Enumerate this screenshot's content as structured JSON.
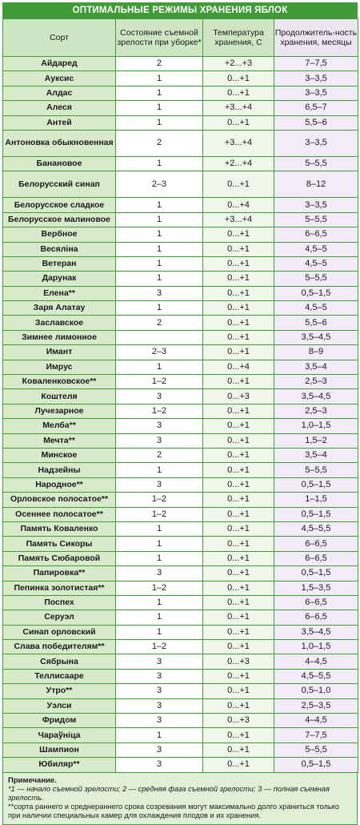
{
  "title": "ОПТИМАЛЬНЫЕ РЕЖИМЫ ХРАНЕНИЯ ЯБЛОК",
  "headers": {
    "sort": "Сорт",
    "state": "Состояние съемной зрелости при уборке*",
    "temp": "Температура хранения, С",
    "duration": "Продолжитель-ность хранения, месяцы"
  },
  "rows": [
    {
      "sort": "Айдаред",
      "state": "2",
      "temp": "+2...+3",
      "duration": "7–7,5"
    },
    {
      "sort": "Ауксис",
      "state": "1",
      "temp": "0...+1",
      "duration": "3–3,5"
    },
    {
      "sort": "Алдас",
      "state": "1",
      "temp": "0...+1",
      "duration": "3–3,5"
    },
    {
      "sort": "Алеся",
      "state": "1",
      "temp": "+3...+4",
      "duration": "6,5–7"
    },
    {
      "sort": "Антей",
      "state": "1",
      "temp": "0...+1",
      "duration": "5,5–6"
    },
    {
      "sort": "Антоновка обыкновенная",
      "state": "2",
      "temp": "+3...+4",
      "duration": "3–3,5",
      "tall": true
    },
    {
      "sort": "Банановое",
      "state": "1",
      "temp": "+2...+4",
      "duration": "5–5,5"
    },
    {
      "sort": "Белорусский синап",
      "state": "2–3",
      "temp": "0...+1",
      "duration": "8–12",
      "tall": true
    },
    {
      "sort": "Белорусское сладкое",
      "state": "1",
      "temp": "0...+4",
      "duration": "3–3,5"
    },
    {
      "sort": "Белорусское малиновое",
      "state": "1",
      "temp": "+3...+4",
      "duration": "5–5,5"
    },
    {
      "sort": "Вербное",
      "state": "1",
      "temp": "0...+1",
      "duration": "6–6,5"
    },
    {
      "sort": "Весялiна",
      "state": "1",
      "temp": "0...+1",
      "duration": "4,5–5"
    },
    {
      "sort": "Ветеран",
      "state": "1",
      "temp": "0...+1",
      "duration": "4,5–5"
    },
    {
      "sort": "Дарунак",
      "state": "1",
      "temp": "0...+1",
      "duration": "5–5,5"
    },
    {
      "sort": "Елена**",
      "state": "3",
      "temp": "0...+1",
      "duration": "0,5–1,5"
    },
    {
      "sort": "Заря Алатау",
      "state": "1",
      "temp": "0...+1",
      "duration": "4,5–5"
    },
    {
      "sort": "Заславское",
      "state": "2",
      "temp": "0...+1",
      "duration": "5,5–6"
    },
    {
      "sort": "Зимнее лимонное",
      "state": "",
      "temp": "0...+1",
      "duration": "3,5–4,5"
    },
    {
      "sort": "Имант",
      "state": "2–3",
      "temp": "0...+1",
      "duration": "8–9"
    },
    {
      "sort": "Имрус",
      "state": "1",
      "temp": "0...+4",
      "duration": "3,5–4"
    },
    {
      "sort": "Коваленковское**",
      "state": "1–2",
      "temp": "0...+1",
      "duration": "2,5–3"
    },
    {
      "sort": "Коштеля",
      "state": "3",
      "temp": "0...+3",
      "duration": "3,5–4,5"
    },
    {
      "sort": "Лучезарное",
      "state": "1–2",
      "temp": "0...+1",
      "duration": "2,5–3"
    },
    {
      "sort": "Мелба**",
      "state": "3",
      "temp": "0...+1",
      "duration": "1,0–1,5"
    },
    {
      "sort": "Мечта**",
      "state": "3",
      "temp": "0...+1",
      "duration": "1,5–2"
    },
    {
      "sort": "Минское",
      "state": "2",
      "temp": "0...+1",
      "duration": "3,5–4"
    },
    {
      "sort": "Надзейны",
      "state": "1",
      "temp": "0...+1",
      "duration": "5–5,5"
    },
    {
      "sort": "Народное**",
      "state": "3",
      "temp": "0...+1",
      "duration": "0,5–1,5"
    },
    {
      "sort": "Орловское полосатое**",
      "state": "1–2",
      "temp": "0...+1",
      "duration": "1–1,5"
    },
    {
      "sort": "Осеннее полосатое**",
      "state": "1–2",
      "temp": "0...+1",
      "duration": "0,5–1,5"
    },
    {
      "sort": "Память Коваленко",
      "state": "1",
      "temp": "0...+1",
      "duration": "4,5–5,5"
    },
    {
      "sort": "Память Сикоры",
      "state": "1",
      "temp": "0...+1",
      "duration": "6–6,5"
    },
    {
      "sort": "Память Сюбаровой",
      "state": "1",
      "temp": "0...+1",
      "duration": "6–6,5"
    },
    {
      "sort": "Папировка**",
      "state": "3",
      "temp": "0...+1",
      "duration": "0,5–1,5"
    },
    {
      "sort": "Пепинка золотистая**",
      "state": "1–2",
      "temp": "0...+1",
      "duration": "1,5–3,5"
    },
    {
      "sort": "Поспех",
      "state": "1",
      "temp": "0...+1",
      "duration": "6–6,5"
    },
    {
      "sort": "Серуэл",
      "state": "1",
      "temp": "0...+1",
      "duration": "6–6,5"
    },
    {
      "sort": "Синап орловский",
      "state": "1",
      "temp": "0...+1",
      "duration": "3,5–4,5"
    },
    {
      "sort": "Слава победителям**",
      "state": "1–2",
      "temp": "0...+1",
      "duration": "1,0–1,5"
    },
    {
      "sort": "Сябрына",
      "state": "3",
      "temp": "0...+3",
      "duration": "4–4,5"
    },
    {
      "sort": "Теллисааре",
      "state": "3",
      "temp": "0...+1",
      "duration": "4,5–5,5"
    },
    {
      "sort": "Утро**",
      "state": "3",
      "temp": "0...+1",
      "duration": "0,5–1,0"
    },
    {
      "sort": "Уэлси",
      "state": "3",
      "temp": "0...+1",
      "duration": "2,5–3,5"
    },
    {
      "sort": "Фридом",
      "state": "3",
      "temp": "0...+3",
      "duration": "4–4,5"
    },
    {
      "sort": "Чараўнiца",
      "state": "1",
      "temp": "0...+1",
      "duration": "7–7,5"
    },
    {
      "sort": "Шампион",
      "state": "3",
      "temp": "0...+1",
      "duration": "5–5,5"
    },
    {
      "sort": "Юбиляр**",
      "state": "3",
      "temp": "0...+1",
      "duration": "0,5–1,5"
    }
  ],
  "note": {
    "heading": "Примечание.",
    "line1": "*1 — начало съемной зрелости; 2 — средняя фаза съемной зрелости; 3 — полная съемная зрелость.",
    "line2": "**сорта раннего и среднераннего срока созревания могут максимально долго храниться только при наличии специальных камер для охлаждения плодов и их хранения."
  }
}
